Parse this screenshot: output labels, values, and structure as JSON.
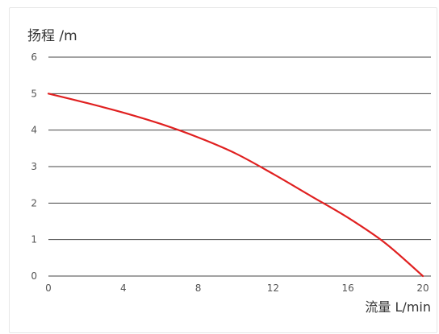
{
  "chart_data": {
    "type": "line",
    "ylabel": "扬程 /m",
    "xlabel": "流量 L/min",
    "xlim": [
      0,
      20
    ],
    "ylim": [
      0,
      6
    ],
    "x_ticks": [
      0,
      4,
      8,
      12,
      16,
      20
    ],
    "y_ticks": [
      0,
      1,
      2,
      3,
      4,
      5,
      6
    ],
    "grid": "horizontal",
    "series": [
      {
        "color": "#e02020",
        "x": [
          0,
          2,
          4,
          6,
          8,
          10,
          12,
          14,
          16,
          18,
          20
        ],
        "y": [
          5.0,
          4.75,
          4.48,
          4.17,
          3.8,
          3.36,
          2.8,
          2.2,
          1.6,
          0.9,
          0.0
        ]
      }
    ]
  }
}
